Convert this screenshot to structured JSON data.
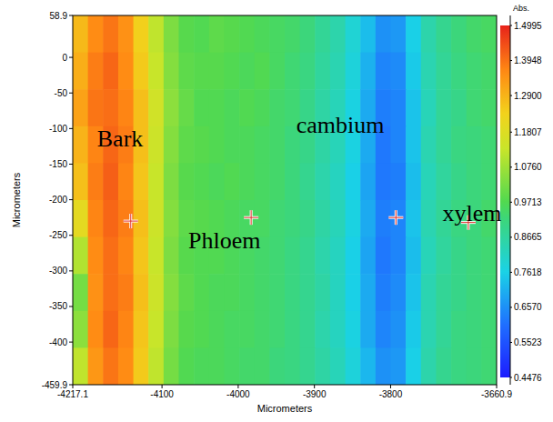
{
  "chart_data": {
    "type": "heatmap",
    "x_label": "Micrometers",
    "y_label": "Micrometers",
    "xlim": [
      -4217.1,
      -3660.9
    ],
    "xticks": [
      -4217.1,
      -4100,
      -4000,
      -3900,
      -3800,
      -3660.9
    ],
    "ylim": [
      -459.9,
      58.9
    ],
    "yticks": [
      58.9,
      0,
      -50,
      -100,
      -150,
      -200,
      -250,
      -300,
      -350,
      -400,
      -459.9
    ],
    "cells": [
      [
        1.28,
        1.36,
        1.39,
        1.35,
        1.24,
        1.12,
        1.03,
        0.98,
        0.97,
        0.99,
        0.98,
        0.97,
        0.96,
        0.95,
        0.94,
        0.92,
        0.88,
        0.85,
        0.79,
        0.73,
        0.66,
        0.67,
        0.76,
        0.85,
        0.89,
        0.92,
        0.94,
        0.95
      ],
      [
        1.3,
        1.38,
        1.41,
        1.36,
        1.25,
        1.13,
        1.04,
        0.99,
        0.98,
        0.98,
        0.97,
        0.96,
        0.97,
        0.95,
        0.93,
        0.91,
        0.87,
        0.84,
        0.78,
        0.71,
        0.64,
        0.65,
        0.75,
        0.84,
        0.88,
        0.91,
        0.93,
        0.94
      ],
      [
        1.32,
        1.39,
        1.4,
        1.37,
        1.27,
        1.15,
        1.05,
        1.0,
        0.97,
        0.97,
        0.96,
        0.97,
        0.96,
        0.94,
        0.93,
        0.9,
        0.86,
        0.83,
        0.77,
        0.7,
        0.63,
        0.64,
        0.74,
        0.83,
        0.88,
        0.9,
        0.93,
        0.94
      ],
      [
        1.29,
        1.37,
        1.41,
        1.38,
        1.27,
        1.14,
        1.04,
        0.99,
        0.98,
        0.97,
        0.96,
        0.96,
        0.95,
        0.94,
        0.92,
        0.9,
        0.86,
        0.83,
        0.77,
        0.7,
        0.62,
        0.64,
        0.74,
        0.84,
        0.88,
        0.91,
        0.92,
        0.93
      ],
      [
        1.27,
        1.38,
        1.42,
        1.37,
        1.26,
        1.13,
        1.03,
        0.98,
        0.97,
        0.96,
        0.97,
        0.96,
        0.95,
        0.94,
        0.92,
        0.89,
        0.85,
        0.82,
        0.76,
        0.69,
        0.62,
        0.63,
        0.73,
        0.83,
        0.87,
        0.9,
        0.92,
        0.93
      ],
      [
        1.2,
        1.37,
        1.41,
        1.38,
        1.27,
        1.14,
        1.04,
        0.99,
        0.98,
        0.97,
        0.96,
        0.95,
        0.95,
        0.93,
        0.92,
        0.9,
        0.86,
        0.83,
        0.77,
        0.7,
        0.63,
        0.64,
        0.74,
        0.84,
        0.88,
        0.91,
        0.92,
        0.94
      ],
      [
        1.1,
        1.36,
        1.4,
        1.37,
        1.26,
        1.13,
        1.03,
        0.98,
        0.97,
        0.97,
        0.96,
        0.95,
        0.94,
        0.93,
        0.91,
        0.89,
        0.85,
        0.82,
        0.76,
        0.69,
        0.62,
        0.64,
        0.73,
        0.83,
        0.87,
        0.9,
        0.92,
        0.93
      ],
      [
        1.02,
        1.35,
        1.4,
        1.38,
        1.27,
        1.14,
        1.04,
        0.99,
        0.97,
        0.96,
        0.96,
        0.95,
        0.94,
        0.93,
        0.91,
        0.89,
        0.86,
        0.82,
        0.76,
        0.7,
        0.63,
        0.65,
        0.74,
        0.84,
        0.88,
        0.9,
        0.92,
        0.93
      ],
      [
        1.05,
        1.36,
        1.41,
        1.37,
        1.26,
        1.13,
        1.03,
        0.98,
        0.97,
        0.96,
        0.95,
        0.95,
        0.94,
        0.93,
        0.91,
        0.89,
        0.85,
        0.82,
        0.77,
        0.7,
        0.64,
        0.66,
        0.75,
        0.84,
        0.88,
        0.91,
        0.92,
        0.93
      ],
      [
        1.12,
        1.34,
        1.39,
        1.36,
        1.25,
        1.12,
        1.02,
        0.97,
        0.96,
        0.96,
        0.95,
        0.94,
        0.94,
        0.92,
        0.91,
        0.89,
        0.86,
        0.83,
        0.78,
        0.72,
        0.66,
        0.67,
        0.76,
        0.85,
        0.89,
        0.91,
        0.92,
        0.93
      ]
    ],
    "colorbar": {
      "title": "Abs.",
      "range": [
        0.4476,
        1.4995
      ],
      "ticks": [
        1.4995,
        1.3948,
        {
          "value": 1.29,
          "label": "1.2900"
        },
        1.1807,
        {
          "value": 1.076,
          "label": "1.0760"
        },
        0.9713,
        0.8665,
        0.7618,
        {
          "value": 0.657,
          "label": "0.6570"
        },
        0.5523,
        0.4476
      ]
    },
    "markers": [
      {
        "x": -4141,
        "y": -230
      },
      {
        "x": -3983,
        "y": -225
      },
      {
        "x": -3793,
        "y": -225
      },
      {
        "x": -3698,
        "y": -232
      }
    ],
    "annotations": [
      {
        "text": "Bark",
        "x": -4155,
        "y": -113
      },
      {
        "text": "Phloem",
        "x": -4018,
        "y": -257
      },
      {
        "text": "cambium",
        "x": -3866,
        "y": -94
      },
      {
        "text": "xylem",
        "x": -3693,
        "y": -218
      }
    ]
  }
}
